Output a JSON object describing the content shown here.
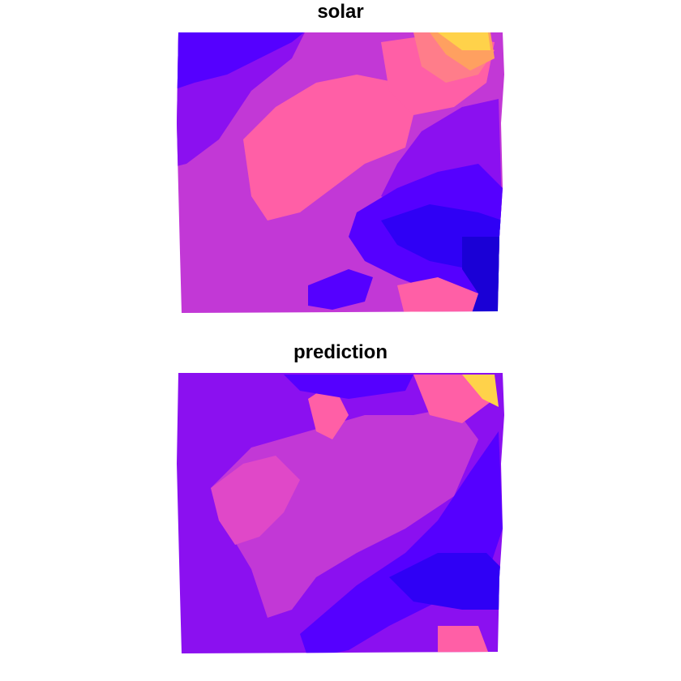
{
  "panels": [
    {
      "id": "solar",
      "title": "solar",
      "map_kind": "observed"
    },
    {
      "id": "prediction",
      "title": "prediction",
      "map_kind": "predicted"
    }
  ],
  "palette": {
    "darkest": "#1a00d6",
    "dark_blue": "#2f00f5",
    "blue_violet": "#5500ff",
    "violet": "#8b10f0",
    "magenta": "#c238d6",
    "pink_magenta": "#e048c8",
    "pink": "#ff5fa6",
    "salmon": "#ff7d8a",
    "orange": "#ffa060",
    "yellow": "#ffd24a"
  }
}
